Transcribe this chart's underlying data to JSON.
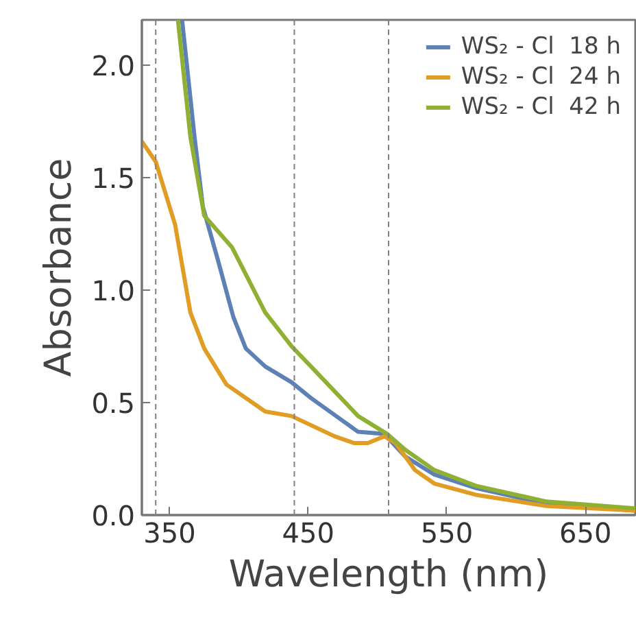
{
  "chart_data": {
    "type": "line",
    "xlabel": "Wavelength (nm)",
    "ylabel": "Absorbance",
    "xlim": [
      330,
      686
    ],
    "ylim": [
      0,
      2.2
    ],
    "xticks": [
      350,
      450,
      550,
      650
    ],
    "yticks": [
      {
        "value": 0,
        "label": "0.0"
      },
      {
        "value": 0.5,
        "label": "0.5"
      },
      {
        "value": 1,
        "label": "1.0"
      },
      {
        "value": 1.5,
        "label": "1.5"
      },
      {
        "value": 2,
        "label": "2.0"
      }
    ],
    "series": [
      {
        "name": "WS₂ - Cl  18 h",
        "color": "#5e81b5",
        "x": [
          359,
          368,
          374,
          385,
          396,
          405,
          419,
          438,
          452,
          486,
          505,
          520,
          541,
          571,
          622,
          686
        ],
        "values": [
          2.2,
          1.68,
          1.37,
          1.13,
          0.88,
          0.74,
          0.66,
          0.59,
          0.52,
          0.37,
          0.36,
          0.26,
          0.18,
          0.12,
          0.05,
          0.02
        ]
      },
      {
        "name": "WS₂ - Cl  24 h",
        "color": "#e19c24",
        "x": [
          330,
          340,
          354,
          365,
          375,
          391,
          419,
          438,
          469,
          483,
          493,
          505,
          513,
          527,
          541,
          571,
          622,
          686
        ],
        "values": [
          1.66,
          1.57,
          1.29,
          0.9,
          0.74,
          0.58,
          0.46,
          0.44,
          0.35,
          0.32,
          0.32,
          0.35,
          0.32,
          0.2,
          0.14,
          0.09,
          0.04,
          0.02
        ]
      },
      {
        "name": "WS₂ - Cl  42 h",
        "color": "#8fb032",
        "x": [
          356,
          365,
          375,
          395,
          419,
          438,
          452,
          486,
          507,
          520,
          541,
          571,
          622,
          686
        ],
        "values": [
          2.2,
          1.68,
          1.33,
          1.19,
          0.9,
          0.75,
          0.66,
          0.44,
          0.36,
          0.29,
          0.2,
          0.13,
          0.06,
          0.03
        ]
      }
    ],
    "ref_lines": [
      {
        "axis": "x",
        "value": 340,
        "color": "#808080",
        "line_style": "dashed"
      },
      {
        "axis": "x",
        "value": 440,
        "color": "#808080",
        "line_style": "dashed"
      },
      {
        "axis": "x",
        "value": 508,
        "color": "#808080",
        "line_style": "dashed"
      }
    ],
    "legend": "top right",
    "grid": false,
    "marker": "none",
    "line_style": "solid"
  }
}
